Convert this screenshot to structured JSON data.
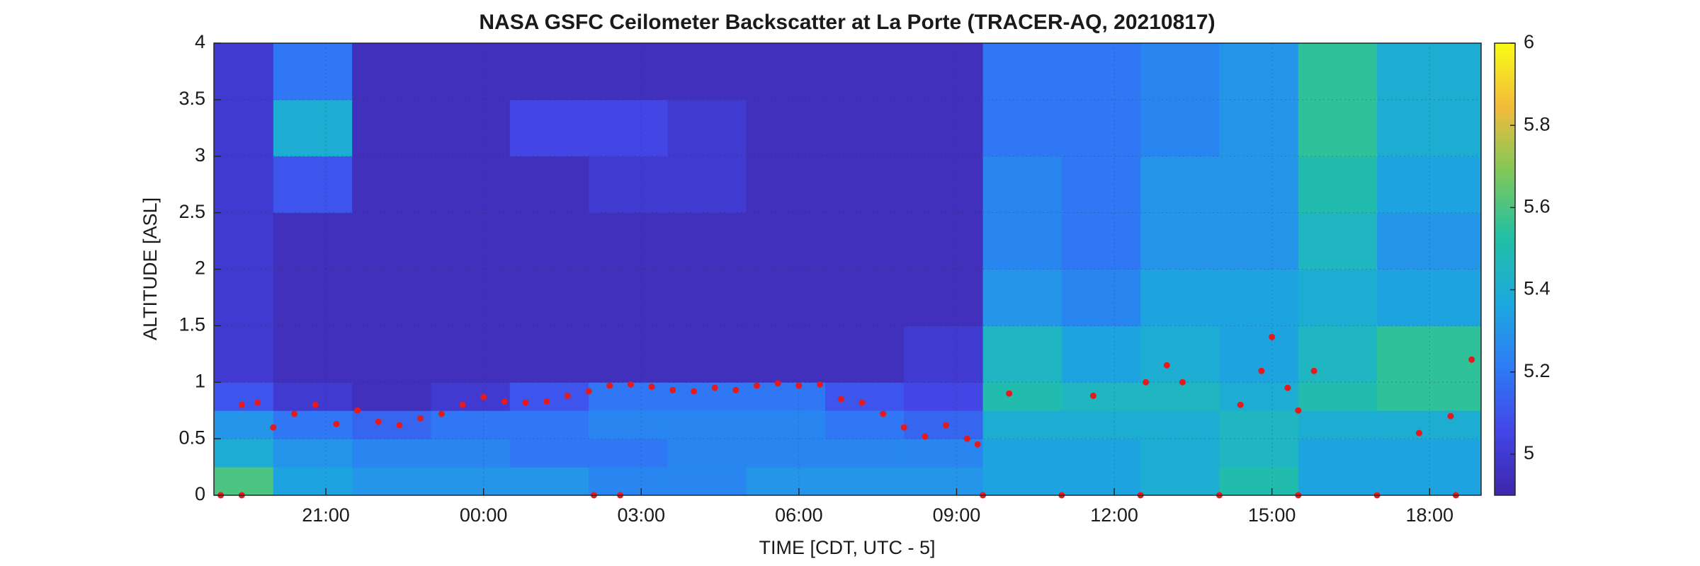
{
  "chart_data": {
    "type": "heatmap",
    "title": "NASA GSFC Ceilometer Backscatter at La Porte (TRACER-AQ, 20210817)",
    "x_label": "TIME [CDT, UTC - 5]",
    "y_label": "ALTITUDE [ASL]",
    "xlim": [
      -5.13,
      18.98
    ],
    "xticks": [
      {
        "value": -3,
        "label": "21:00"
      },
      {
        "value": 0,
        "label": "00:00"
      },
      {
        "value": 3,
        "label": "03:00"
      },
      {
        "value": 6,
        "label": "06:00"
      },
      {
        "value": 9,
        "label": "09:00"
      },
      {
        "value": 12,
        "label": "12:00"
      },
      {
        "value": 15,
        "label": "15:00"
      },
      {
        "value": 18,
        "label": "18:00"
      }
    ],
    "ylim": [
      0,
      4
    ],
    "yticks": [
      0,
      0.5,
      1,
      1.5,
      2,
      2.5,
      3,
      3.5,
      4
    ],
    "grid": true,
    "clim": [
      4.9,
      6
    ],
    "cticks": [
      5,
      5.2,
      5.4,
      5.6,
      5.8,
      6
    ],
    "colormap": [
      "#3e26a8",
      "#4346e8",
      "#2d7cf5",
      "#1ca9de",
      "#22c0a3",
      "#7ec85a",
      "#f2bb3c",
      "#f9fb15"
    ],
    "x_edges": [
      -5.13,
      -4,
      -2.5,
      -1,
      0.5,
      2,
      3.5,
      5,
      6.5,
      8,
      9.5,
      11,
      12.5,
      14,
      15.5,
      17,
      18.98
    ],
    "y_edges": [
      0,
      0.25,
      0.5,
      0.75,
      1,
      1.5,
      2,
      2.5,
      3,
      3.5,
      4
    ],
    "z": [
      [
        5.6,
        5.4,
        5.3,
        5.1,
        5.0,
        5.0,
        5.0,
        5.0,
        5.0,
        5.0
      ],
      [
        5.35,
        5.3,
        5.2,
        5.0,
        4.95,
        4.95,
        4.95,
        5.1,
        5.4,
        5.2
      ],
      [
        5.3,
        5.25,
        5.15,
        4.95,
        4.95,
        4.95,
        4.95,
        4.95,
        4.95,
        4.95
      ],
      [
        5.3,
        5.25,
        5.2,
        5.0,
        4.95,
        4.95,
        4.95,
        4.95,
        4.95,
        4.95
      ],
      [
        5.3,
        5.2,
        5.2,
        5.1,
        4.95,
        4.95,
        4.95,
        4.95,
        5.05,
        4.95
      ],
      [
        5.25,
        5.2,
        5.25,
        5.2,
        4.95,
        4.95,
        4.95,
        5.0,
        5.05,
        4.95
      ],
      [
        5.25,
        5.25,
        5.25,
        5.2,
        4.95,
        4.95,
        4.95,
        5.0,
        5.0,
        4.95
      ],
      [
        5.3,
        5.25,
        5.25,
        5.2,
        4.95,
        4.95,
        4.95,
        4.95,
        4.95,
        4.95
      ],
      [
        5.3,
        5.25,
        5.2,
        5.1,
        4.95,
        4.95,
        4.95,
        4.95,
        4.95,
        4.95
      ],
      [
        5.3,
        5.25,
        5.15,
        5.05,
        5.0,
        4.95,
        4.95,
        4.95,
        4.95,
        4.95
      ],
      [
        5.35,
        5.35,
        5.4,
        5.5,
        5.45,
        5.3,
        5.25,
        5.25,
        5.2,
        5.2
      ],
      [
        5.35,
        5.35,
        5.4,
        5.45,
        5.35,
        5.25,
        5.2,
        5.2,
        5.2,
        5.2
      ],
      [
        5.4,
        5.4,
        5.4,
        5.45,
        5.4,
        5.35,
        5.3,
        5.3,
        5.25,
        5.25
      ],
      [
        5.5,
        5.45,
        5.45,
        5.4,
        5.35,
        5.35,
        5.3,
        5.3,
        5.3,
        5.3
      ],
      [
        5.35,
        5.35,
        5.4,
        5.5,
        5.45,
        5.4,
        5.45,
        5.5,
        5.55,
        5.55
      ],
      [
        5.35,
        5.35,
        5.4,
        5.55,
        5.55,
        5.35,
        5.3,
        5.35,
        5.4,
        5.4
      ]
    ],
    "overlay": {
      "type": "scatter",
      "color": "#e41a1c",
      "x": [
        -4.6,
        -4.3,
        -4.0,
        -3.6,
        -3.2,
        -2.8,
        -2.4,
        -2.0,
        -1.6,
        -1.2,
        -0.8,
        -0.4,
        0,
        0.4,
        0.8,
        1.2,
        1.6,
        2.0,
        2.4,
        2.8,
        3.2,
        3.6,
        4.0,
        4.4,
        4.8,
        5.2,
        5.6,
        6.0,
        6.4,
        6.8,
        7.2,
        7.6,
        8.0,
        8.4,
        8.8,
        9.2,
        9.4,
        10.0,
        11.6,
        12.6,
        13.0,
        13.3,
        14.4,
        14.8,
        15.0,
        15.3,
        15.5,
        15.8,
        17.8,
        18.4,
        18.8,
        -5.0,
        -4.6,
        2.1,
        2.6,
        9.5,
        11,
        12.5,
        14,
        15.5,
        17,
        18.5
      ],
      "y": [
        0.8,
        0.82,
        0.6,
        0.72,
        0.8,
        0.63,
        0.75,
        0.65,
        0.62,
        0.68,
        0.72,
        0.8,
        0.87,
        0.83,
        0.82,
        0.83,
        0.88,
        0.92,
        0.97,
        0.98,
        0.96,
        0.93,
        0.92,
        0.95,
        0.93,
        0.97,
        0.99,
        0.97,
        0.98,
        0.85,
        0.82,
        0.72,
        0.6,
        0.52,
        0.62,
        0.5,
        0.45,
        0.9,
        0.88,
        1.0,
        1.15,
        1.0,
        0.8,
        1.1,
        1.4,
        0.95,
        0.75,
        1.1,
        0.55,
        0.7,
        1.2,
        0,
        0,
        0,
        0,
        0,
        0,
        0,
        0,
        0,
        0,
        0
      ]
    }
  }
}
